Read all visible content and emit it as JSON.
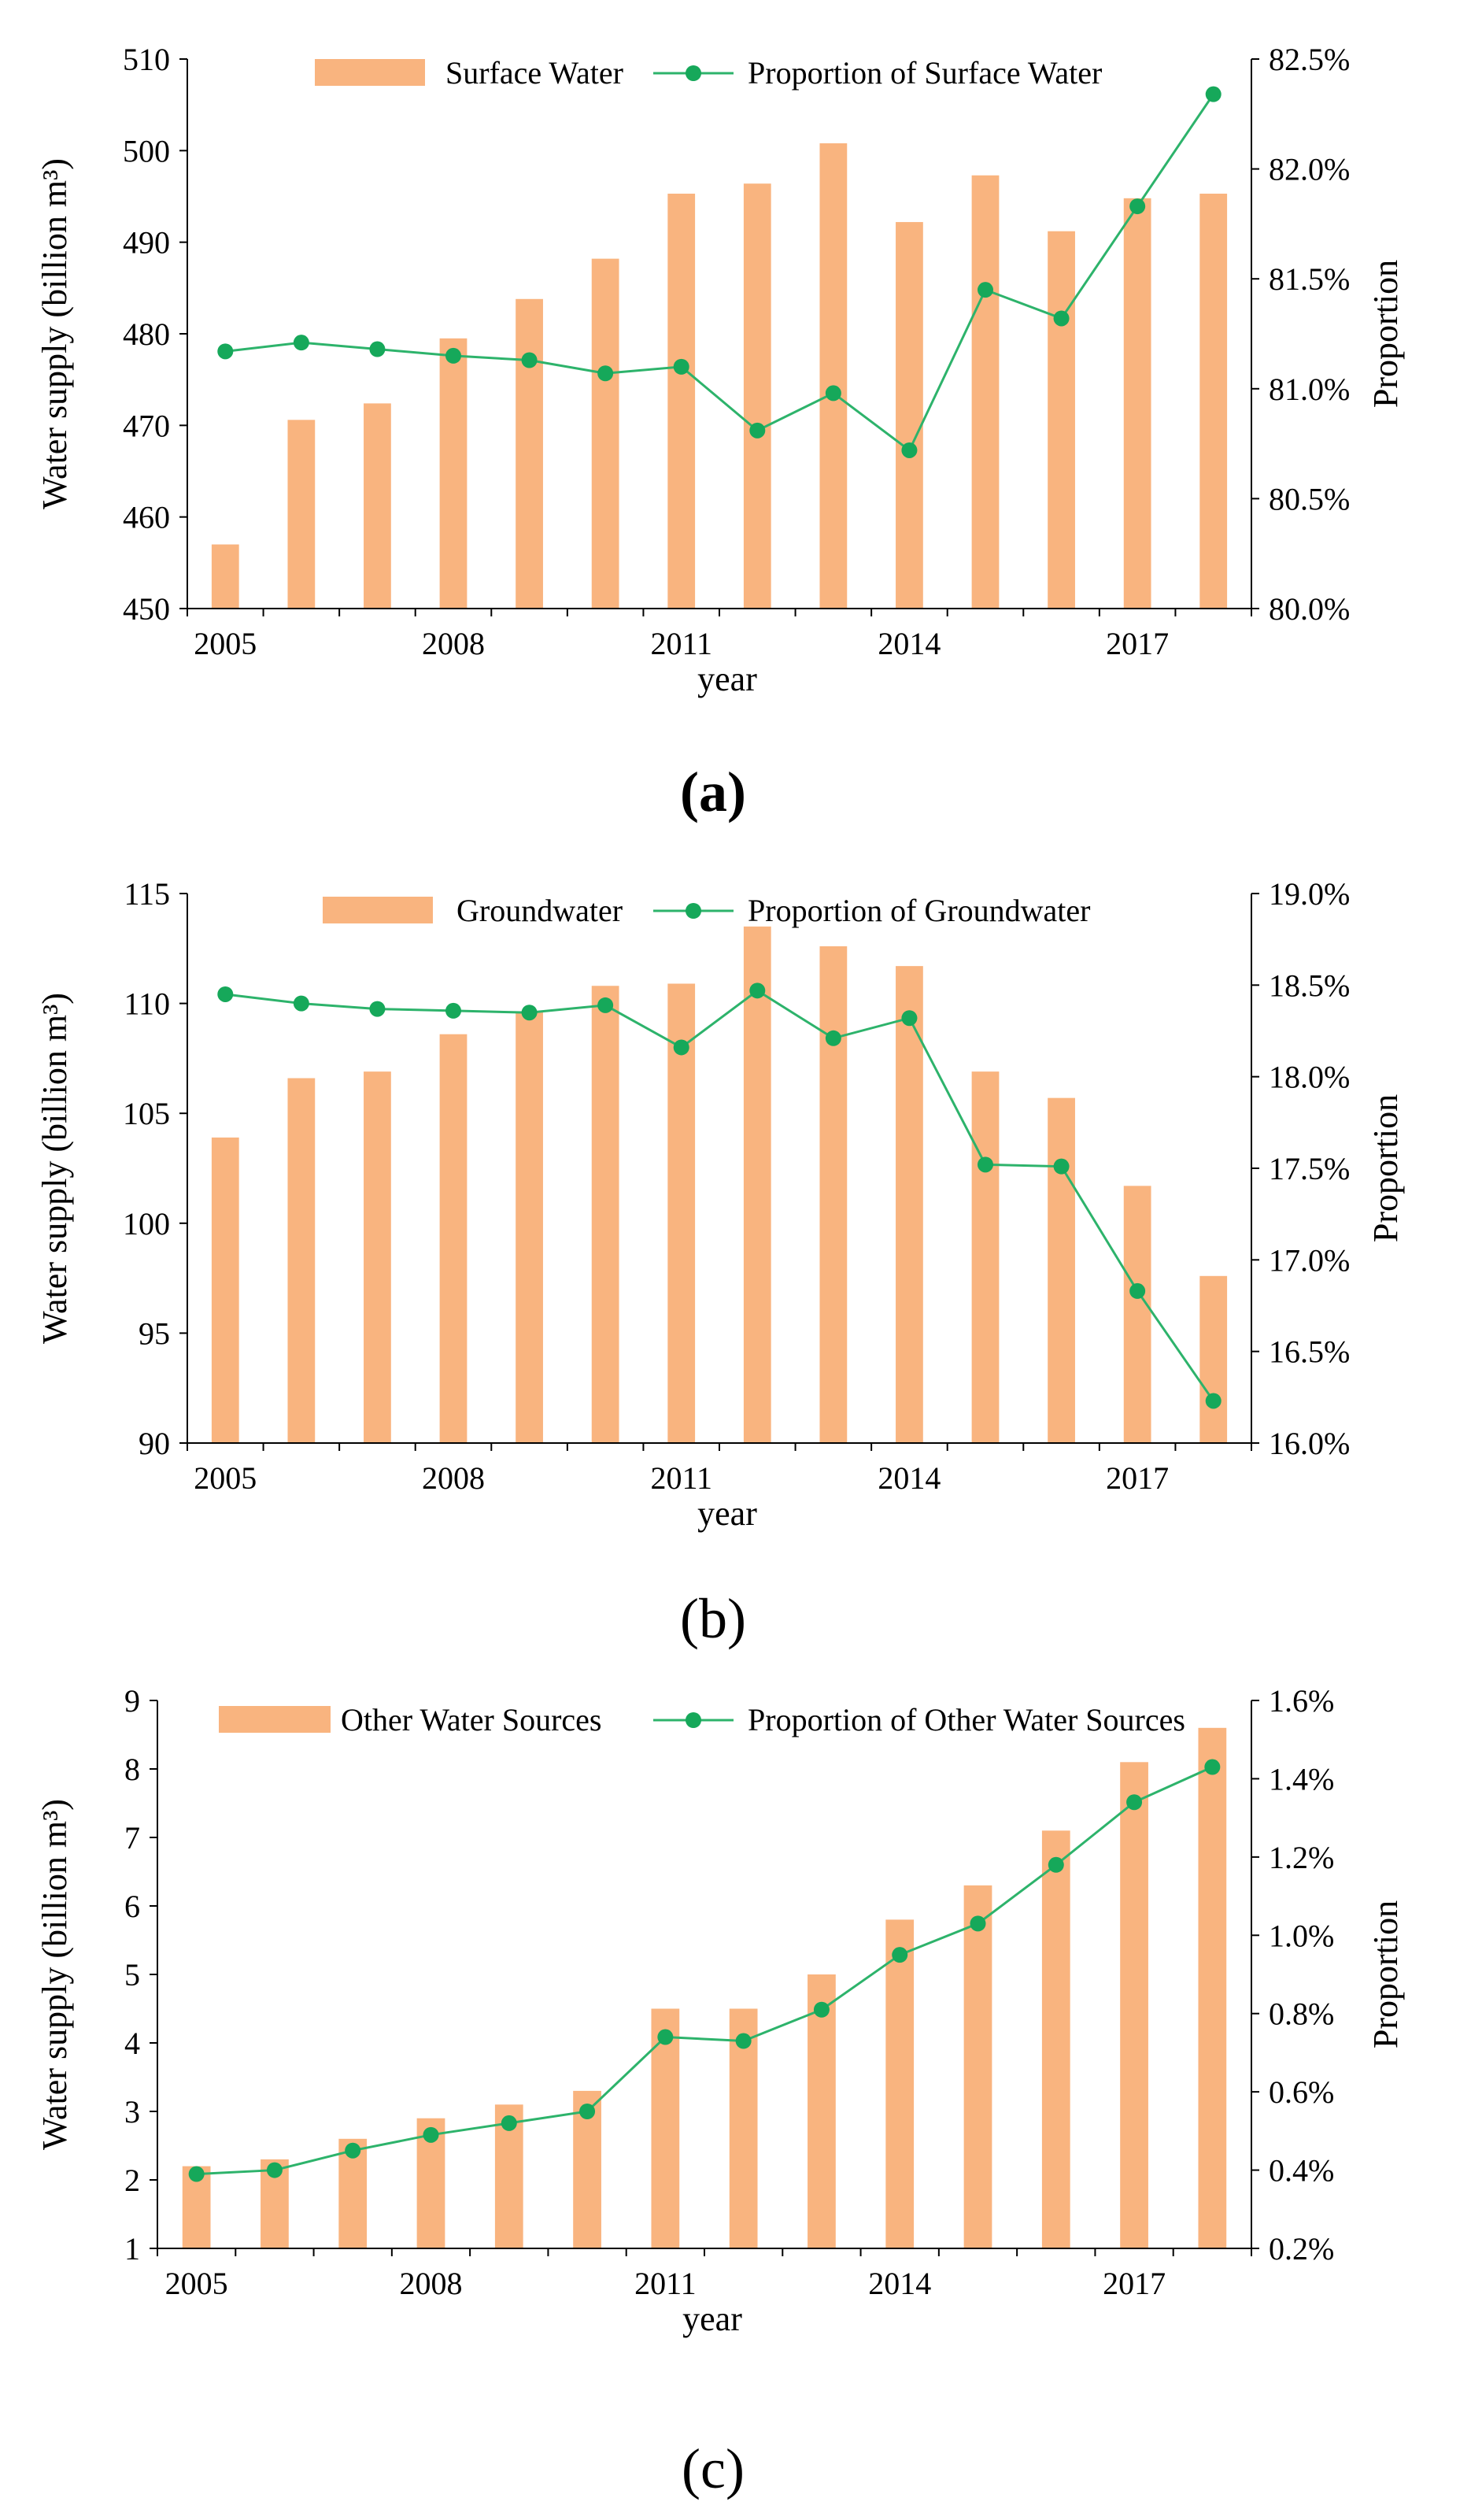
{
  "colors": {
    "bar": "#F9B47F",
    "line": "#2DB36B",
    "marker": "#16A85A",
    "axis": "#000000"
  },
  "chart_data": [
    {
      "type": "bar+line",
      "panel": "(a)",
      "title": "",
      "xlabel": "year",
      "ylabel": "Water supply (billion m³)",
      "y2label": "Proportion",
      "x": [
        2005,
        2006,
        2007,
        2008,
        2009,
        2010,
        2011,
        2012,
        2013,
        2014,
        2015,
        2016,
        2017,
        2018
      ],
      "xticks": [
        "2005",
        "2008",
        "2011",
        "2014",
        "2017"
      ],
      "ylim": [
        450,
        510
      ],
      "yticks": [
        "450",
        "460",
        "470",
        "480",
        "490",
        "500",
        "510"
      ],
      "y2lim": [
        80.0,
        82.5
      ],
      "y2ticks": [
        "80.0%",
        "80.5%",
        "81.0%",
        "81.5%",
        "82.0%",
        "82.5%"
      ],
      "series": [
        {
          "name": "Surface Water",
          "kind": "bar",
          "axis": "left",
          "values": [
            457.0,
            470.6,
            472.4,
            479.5,
            483.8,
            488.2,
            495.3,
            496.4,
            500.8,
            492.2,
            497.3,
            491.2,
            494.8,
            495.3
          ]
        },
        {
          "name": "Proportion of Surface Water",
          "kind": "line",
          "axis": "right",
          "values": [
            81.17,
            81.21,
            81.18,
            81.15,
            81.13,
            81.07,
            81.1,
            80.81,
            80.98,
            80.72,
            81.45,
            81.32,
            81.83,
            82.34
          ]
        }
      ],
      "legend": [
        "Surface Water",
        "Proportion of Surface Water"
      ],
      "legend_position": "top"
    },
    {
      "type": "bar+line",
      "panel": "(b)",
      "title": "",
      "xlabel": "year",
      "ylabel": "Water supply (billion m³)",
      "y2label": "Proportion",
      "x": [
        2005,
        2006,
        2007,
        2008,
        2009,
        2010,
        2011,
        2012,
        2013,
        2014,
        2015,
        2016,
        2017,
        2018
      ],
      "xticks": [
        "2005",
        "2008",
        "2011",
        "2014",
        "2017"
      ],
      "ylim": [
        90,
        115
      ],
      "yticks": [
        "90",
        "95",
        "100",
        "105",
        "110",
        "115"
      ],
      "y2lim": [
        16.0,
        19.0
      ],
      "y2ticks": [
        "16.0%",
        "16.5%",
        "17.0%",
        "17.5%",
        "18.0%",
        "18.5%",
        "19.0%"
      ],
      "series": [
        {
          "name": "Groundwater",
          "kind": "bar",
          "axis": "left",
          "values": [
            103.9,
            106.6,
            106.9,
            108.6,
            109.6,
            110.8,
            110.9,
            113.5,
            112.6,
            111.7,
            106.9,
            105.7,
            101.7,
            97.6
          ]
        },
        {
          "name": "Proportion of Groundwater",
          "kind": "line",
          "axis": "right",
          "values": [
            18.45,
            18.4,
            18.37,
            18.36,
            18.35,
            18.39,
            18.16,
            18.47,
            18.21,
            18.32,
            17.52,
            17.51,
            16.83,
            16.23
          ]
        }
      ],
      "legend": [
        "Groundwater",
        "Proportion of Groundwater"
      ],
      "legend_position": "top"
    },
    {
      "type": "bar+line",
      "panel": "(c)",
      "title": "",
      "xlabel": "year",
      "ylabel": "Water supply (billion m³)",
      "y2label": "Proportion",
      "x": [
        2005,
        2006,
        2007,
        2008,
        2009,
        2010,
        2011,
        2012,
        2013,
        2014,
        2015,
        2016,
        2017,
        2018
      ],
      "xticks": [
        "2005",
        "2008",
        "2011",
        "2014",
        "2017"
      ],
      "ylim": [
        1,
        9
      ],
      "yticks": [
        "1",
        "2",
        "3",
        "4",
        "5",
        "6",
        "7",
        "8",
        "9"
      ],
      "y2lim": [
        0.2,
        1.6
      ],
      "y2ticks": [
        "0.2%",
        "0.4%",
        "0.6%",
        "0.8%",
        "1.0%",
        "1.2%",
        "1.4%",
        "1.6%"
      ],
      "series": [
        {
          "name": "Other Water Sources",
          "kind": "bar",
          "axis": "left",
          "values": [
            2.2,
            2.3,
            2.6,
            2.9,
            3.1,
            3.3,
            4.5,
            4.5,
            5.0,
            5.8,
            6.3,
            7.1,
            8.1,
            8.6
          ]
        },
        {
          "name": "Proportion of Other Water Sources",
          "kind": "line",
          "axis": "right",
          "values": [
            0.39,
            0.4,
            0.45,
            0.49,
            0.52,
            0.55,
            0.74,
            0.73,
            0.81,
            0.95,
            1.03,
            1.18,
            1.34,
            1.43
          ]
        }
      ],
      "legend": [
        "Other Water Sources",
        "Proportion of Other Water Sources"
      ],
      "legend_position": "top"
    }
  ]
}
